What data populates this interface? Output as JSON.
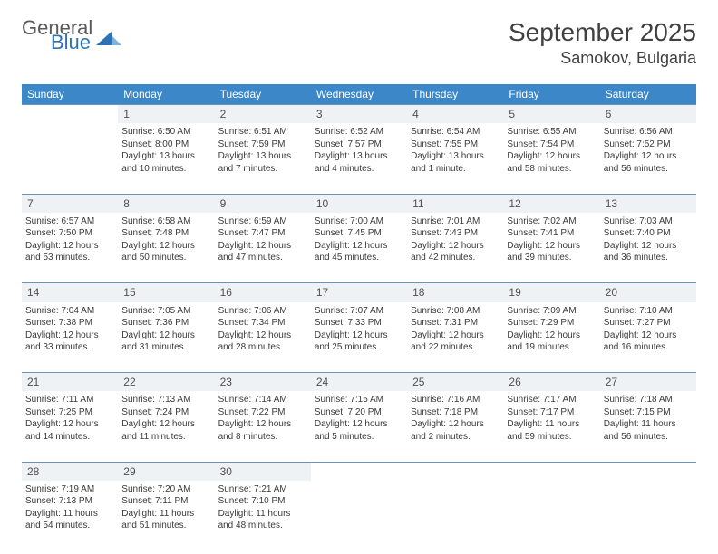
{
  "logo": {
    "word1": "General",
    "word2": "Blue",
    "word1_color": "#5a5a5a",
    "word2_color": "#2d72b5"
  },
  "title": "September 2025",
  "location": "Samokov, Bulgaria",
  "colors": {
    "header_bg": "#3b87c8",
    "header_text": "#ffffff",
    "daynum_bg": "#eef2f5",
    "border": "#6a93b8",
    "text": "#3a3a3a"
  },
  "day_headers": [
    "Sunday",
    "Monday",
    "Tuesday",
    "Wednesday",
    "Thursday",
    "Friday",
    "Saturday"
  ],
  "weeks": [
    {
      "nums": [
        "",
        "1",
        "2",
        "3",
        "4",
        "5",
        "6"
      ],
      "cells": [
        null,
        {
          "sunrise": "6:50 AM",
          "sunset": "8:00 PM",
          "daylight": "13 hours and 10 minutes."
        },
        {
          "sunrise": "6:51 AM",
          "sunset": "7:59 PM",
          "daylight": "13 hours and 7 minutes."
        },
        {
          "sunrise": "6:52 AM",
          "sunset": "7:57 PM",
          "daylight": "13 hours and 4 minutes."
        },
        {
          "sunrise": "6:54 AM",
          "sunset": "7:55 PM",
          "daylight": "13 hours and 1 minute."
        },
        {
          "sunrise": "6:55 AM",
          "sunset": "7:54 PM",
          "daylight": "12 hours and 58 minutes."
        },
        {
          "sunrise": "6:56 AM",
          "sunset": "7:52 PM",
          "daylight": "12 hours and 56 minutes."
        }
      ]
    },
    {
      "nums": [
        "7",
        "8",
        "9",
        "10",
        "11",
        "12",
        "13"
      ],
      "cells": [
        {
          "sunrise": "6:57 AM",
          "sunset": "7:50 PM",
          "daylight": "12 hours and 53 minutes."
        },
        {
          "sunrise": "6:58 AM",
          "sunset": "7:48 PM",
          "daylight": "12 hours and 50 minutes."
        },
        {
          "sunrise": "6:59 AM",
          "sunset": "7:47 PM",
          "daylight": "12 hours and 47 minutes."
        },
        {
          "sunrise": "7:00 AM",
          "sunset": "7:45 PM",
          "daylight": "12 hours and 45 minutes."
        },
        {
          "sunrise": "7:01 AM",
          "sunset": "7:43 PM",
          "daylight": "12 hours and 42 minutes."
        },
        {
          "sunrise": "7:02 AM",
          "sunset": "7:41 PM",
          "daylight": "12 hours and 39 minutes."
        },
        {
          "sunrise": "7:03 AM",
          "sunset": "7:40 PM",
          "daylight": "12 hours and 36 minutes."
        }
      ]
    },
    {
      "nums": [
        "14",
        "15",
        "16",
        "17",
        "18",
        "19",
        "20"
      ],
      "cells": [
        {
          "sunrise": "7:04 AM",
          "sunset": "7:38 PM",
          "daylight": "12 hours and 33 minutes."
        },
        {
          "sunrise": "7:05 AM",
          "sunset": "7:36 PM",
          "daylight": "12 hours and 31 minutes."
        },
        {
          "sunrise": "7:06 AM",
          "sunset": "7:34 PM",
          "daylight": "12 hours and 28 minutes."
        },
        {
          "sunrise": "7:07 AM",
          "sunset": "7:33 PM",
          "daylight": "12 hours and 25 minutes."
        },
        {
          "sunrise": "7:08 AM",
          "sunset": "7:31 PM",
          "daylight": "12 hours and 22 minutes."
        },
        {
          "sunrise": "7:09 AM",
          "sunset": "7:29 PM",
          "daylight": "12 hours and 19 minutes."
        },
        {
          "sunrise": "7:10 AM",
          "sunset": "7:27 PM",
          "daylight": "12 hours and 16 minutes."
        }
      ]
    },
    {
      "nums": [
        "21",
        "22",
        "23",
        "24",
        "25",
        "26",
        "27"
      ],
      "cells": [
        {
          "sunrise": "7:11 AM",
          "sunset": "7:25 PM",
          "daylight": "12 hours and 14 minutes."
        },
        {
          "sunrise": "7:13 AM",
          "sunset": "7:24 PM",
          "daylight": "12 hours and 11 minutes."
        },
        {
          "sunrise": "7:14 AM",
          "sunset": "7:22 PM",
          "daylight": "12 hours and 8 minutes."
        },
        {
          "sunrise": "7:15 AM",
          "sunset": "7:20 PM",
          "daylight": "12 hours and 5 minutes."
        },
        {
          "sunrise": "7:16 AM",
          "sunset": "7:18 PM",
          "daylight": "12 hours and 2 minutes."
        },
        {
          "sunrise": "7:17 AM",
          "sunset": "7:17 PM",
          "daylight": "11 hours and 59 minutes."
        },
        {
          "sunrise": "7:18 AM",
          "sunset": "7:15 PM",
          "daylight": "11 hours and 56 minutes."
        }
      ]
    },
    {
      "nums": [
        "28",
        "29",
        "30",
        "",
        "",
        "",
        ""
      ],
      "cells": [
        {
          "sunrise": "7:19 AM",
          "sunset": "7:13 PM",
          "daylight": "11 hours and 54 minutes."
        },
        {
          "sunrise": "7:20 AM",
          "sunset": "7:11 PM",
          "daylight": "11 hours and 51 minutes."
        },
        {
          "sunrise": "7:21 AM",
          "sunset": "7:10 PM",
          "daylight": "11 hours and 48 minutes."
        },
        null,
        null,
        null,
        null
      ]
    }
  ],
  "labels": {
    "sunrise": "Sunrise:",
    "sunset": "Sunset:",
    "daylight": "Daylight:"
  }
}
